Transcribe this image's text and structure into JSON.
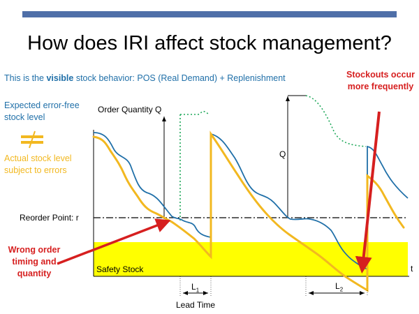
{
  "slide": {
    "title": "How does IRI affect stock management?",
    "subtitle_pre": "This is the ",
    "subtitle_bold": "visible",
    "subtitle_post": " stock behavior: POS (Real Demand) + Replenishment",
    "legend_expected": "Expected error-free stock level",
    "legend_actual": "Actual stock level subject to errors",
    "stockouts_note": "Stockouts occur more frequently",
    "wrong_order_note": "Wrong order timing and quantity"
  },
  "diagram": {
    "order_quantity_label": "Order Quantity Q",
    "q_label": "Q",
    "reorder_point_label": "Reorder Point: r",
    "safety_stock_label": "Safety Stock",
    "time_axis_label": "t",
    "lead_time_label": "Lead Time",
    "l1_label": "L",
    "l1_sub": "1",
    "l2_label": "L",
    "l2_sub": "2"
  },
  "colors": {
    "expected": "#1f6fa8",
    "actual": "#f2b820",
    "safety_stock": "#ffff00",
    "reorder_green": "#1fa85a",
    "alert_red": "#d61f1f",
    "top_bar": "#4f6fa8"
  }
}
